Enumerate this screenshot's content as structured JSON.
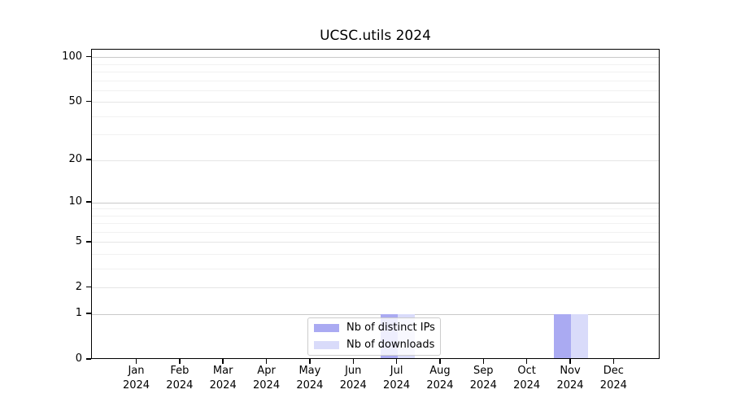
{
  "chart_data": {
    "type": "bar",
    "title": "UCSC.utils 2024",
    "x_months": [
      "Jan",
      "Feb",
      "Mar",
      "Apr",
      "May",
      "Jun",
      "Jul",
      "Aug",
      "Sep",
      "Oct",
      "Nov",
      "Dec"
    ],
    "x_year": "2024",
    "categories": [
      "Jan 2024",
      "Feb 2024",
      "Mar 2024",
      "Apr 2024",
      "May 2024",
      "Jun 2024",
      "Jul 2024",
      "Aug 2024",
      "Sep 2024",
      "Oct 2024",
      "Nov 2024",
      "Dec 2024"
    ],
    "series": [
      {
        "name": "Nb of distinct IPs",
        "color": "#aaaaf2",
        "values": [
          0,
          0,
          0,
          0,
          0,
          0,
          1,
          0,
          0,
          0,
          1,
          0
        ]
      },
      {
        "name": "Nb of downloads",
        "color": "#d9dbfa",
        "values": [
          0,
          0,
          0,
          0,
          0,
          0,
          1,
          0,
          0,
          0,
          1,
          0
        ]
      }
    ],
    "y_scale": "log1p",
    "y_tick_values": [
      0,
      1,
      2,
      5,
      10,
      20,
      50,
      100
    ],
    "y_tick_labels": [
      "0",
      "1",
      "2",
      "5",
      "10",
      "20",
      "50",
      "100"
    ],
    "y_minor_gridline_values": [
      3,
      4,
      6,
      7,
      8,
      9,
      30,
      40,
      60,
      70,
      80,
      90
    ],
    "ylim": [
      0,
      113
    ],
    "xlabel": "",
    "ylabel": "",
    "grid": true,
    "legend_position": "bottom-center"
  },
  "colors": {
    "axis": "#000000",
    "grid_decade": "#c9c9c9",
    "grid_major": "#e5e5e5",
    "grid_minor": "#f1f1f1",
    "legend_border": "#cccccc",
    "background": "#ffffff",
    "text": "#000000"
  }
}
